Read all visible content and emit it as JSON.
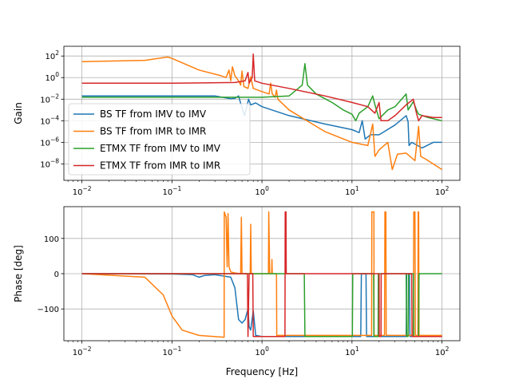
{
  "figure": {
    "xlabel": "Frequency [Hz]"
  },
  "chart_data": [
    {
      "type": "line",
      "panel": "gain",
      "ylabel": "Gain",
      "xscale": "log",
      "yscale": "log",
      "xlim": [
        0.0063,
        158
      ],
      "ylim": [
        3e-10,
        800
      ],
      "grid": true,
      "legend": "lower-left",
      "x_ticks": [
        {
          "value": 0.01,
          "base": "10",
          "exp": "−2"
        },
        {
          "value": 0.1,
          "base": "10",
          "exp": "−1"
        },
        {
          "value": 1,
          "base": "10",
          "exp": "0"
        },
        {
          "value": 10,
          "base": "10",
          "exp": "1"
        },
        {
          "value": 100,
          "base": "10",
          "exp": "2"
        }
      ],
      "y_ticks": [
        {
          "value": 100,
          "base": "10",
          "exp": "2"
        },
        {
          "value": 1,
          "base": "10",
          "exp": "0"
        },
        {
          "value": 0.01,
          "base": "10",
          "exp": "−2"
        },
        {
          "value": 0.0001,
          "base": "10",
          "exp": "−4"
        },
        {
          "value": 1e-06,
          "base": "10",
          "exp": "−6"
        },
        {
          "value": 1e-08,
          "base": "10",
          "exp": "−8"
        }
      ],
      "series": [
        {
          "name": "BS TF from IMV to IMV",
          "color": "#1f77b4",
          "points": [
            [
              0.01,
              0.02
            ],
            [
              0.1,
              0.02
            ],
            [
              0.3,
              0.02
            ],
            [
              0.45,
              0.011
            ],
            [
              0.5,
              0.012
            ],
            [
              0.55,
              0.02
            ],
            [
              0.6,
              0.0015
            ],
            [
              0.64,
              0.0003
            ],
            [
              0.68,
              0.002
            ],
            [
              0.71,
              0.01
            ],
            [
              0.75,
              0.003
            ],
            [
              0.85,
              0.0045
            ],
            [
              1.0,
              0.002
            ],
            [
              2.0,
              0.0003
            ],
            [
              5.0,
              5e-05
            ],
            [
              10,
              1.5e-05
            ],
            [
              12,
              8e-06
            ],
            [
              13,
              0.0001
            ],
            [
              14,
              2e-06
            ],
            [
              16,
              5e-06
            ],
            [
              20,
              5e-06
            ],
            [
              30,
              4e-05
            ],
            [
              40,
              0.0003
            ],
            [
              42,
              8e-05
            ],
            [
              43,
              5e-07
            ],
            [
              46,
              1e-06
            ],
            [
              60,
              3e-07
            ],
            [
              80,
              1e-06
            ],
            [
              100,
              1e-06
            ]
          ]
        },
        {
          "name": "BS TF from IMR to IMR",
          "color": "#ff7f0e",
          "points": [
            [
              0.01,
              30
            ],
            [
              0.05,
              40
            ],
            [
              0.08,
              70
            ],
            [
              0.09,
              80
            ],
            [
              0.1,
              60
            ],
            [
              0.2,
              5
            ],
            [
              0.35,
              1.5
            ],
            [
              0.4,
              1
            ],
            [
              0.43,
              5
            ],
            [
              0.45,
              0.5
            ],
            [
              0.47,
              10
            ],
            [
              0.5,
              1.5
            ],
            [
              0.55,
              0.5
            ],
            [
              0.58,
              0.2
            ],
            [
              0.6,
              4
            ],
            [
              0.63,
              0.15
            ],
            [
              0.7,
              0.1
            ],
            [
              0.75,
              1.2
            ],
            [
              0.8,
              0.1
            ],
            [
              1.0,
              0.05
            ],
            [
              1.2,
              0.03
            ],
            [
              1.25,
              0.3
            ],
            [
              1.3,
              0.03
            ],
            [
              1.4,
              0.015
            ],
            [
              1.45,
              0.07
            ],
            [
              1.5,
              0.01
            ],
            [
              2.0,
              0.001
            ],
            [
              5.0,
              1e-05
            ],
            [
              10,
              1e-06
            ],
            [
              15,
              5e-07
            ],
            [
              17,
              5e-05
            ],
            [
              18,
              5e-08
            ],
            [
              20,
              2e-07
            ],
            [
              25,
              1e-06
            ],
            [
              28,
              3e-09
            ],
            [
              32,
              8e-08
            ],
            [
              40,
              1e-07
            ],
            [
              50,
              2e-08
            ],
            [
              55,
              3e-05
            ],
            [
              58,
              5e-08
            ],
            [
              65,
              3e-08
            ],
            [
              100,
              3e-09
            ]
          ]
        },
        {
          "name": "ETMX TF from IMV to IMV",
          "color": "#2ca02c",
          "points": [
            [
              0.01,
              0.015
            ],
            [
              0.1,
              0.015
            ],
            [
              0.5,
              0.015
            ],
            [
              1.0,
              0.015
            ],
            [
              2.0,
              0.02
            ],
            [
              2.8,
              0.2
            ],
            [
              3.0,
              20
            ],
            [
              3.2,
              0.2
            ],
            [
              4.0,
              0.03
            ],
            [
              6.0,
              0.005
            ],
            [
              8.0,
              0.001
            ],
            [
              10,
              0.0004
            ],
            [
              11,
              0.0001
            ],
            [
              12,
              0.0005
            ],
            [
              15,
              0.002
            ],
            [
              17,
              0.02
            ],
            [
              18,
              0.003
            ],
            [
              20,
              0.00015
            ],
            [
              25,
              0.001
            ],
            [
              30,
              0.002
            ],
            [
              40,
              0.03
            ],
            [
              42,
              0.001
            ],
            [
              48,
              0.006
            ],
            [
              52,
              0.001
            ],
            [
              55,
              0.0004
            ],
            [
              70,
              0.0002
            ],
            [
              100,
              0.0001
            ]
          ]
        },
        {
          "name": "ETMX TF from IMR to IMR",
          "color": "#d62728",
          "points": [
            [
              0.01,
              0.3
            ],
            [
              0.1,
              0.3
            ],
            [
              0.5,
              0.35
            ],
            [
              0.65,
              0.5
            ],
            [
              0.7,
              3
            ],
            [
              0.72,
              0.3
            ],
            [
              0.78,
              1
            ],
            [
              0.8,
              150
            ],
            [
              0.83,
              0.5
            ],
            [
              1.0,
              0.3
            ],
            [
              2.0,
              0.1
            ],
            [
              5.0,
              0.02
            ],
            [
              10,
              0.005
            ],
            [
              15,
              0.002
            ],
            [
              18,
              0.0005
            ],
            [
              20,
              0.005
            ],
            [
              21,
              0.0001
            ],
            [
              25,
              0.0001
            ],
            [
              30,
              0.0003
            ],
            [
              40,
              0.003
            ],
            [
              48,
              0.01
            ],
            [
              52,
              0.0005
            ],
            [
              55,
              0.0001
            ],
            [
              60,
              0.0003
            ],
            [
              80,
              0.0002
            ],
            [
              100,
              0.0002
            ]
          ]
        }
      ]
    },
    {
      "type": "line",
      "panel": "phase",
      "ylabel": "Phase [deg]",
      "xscale": "log",
      "xlim": [
        0.0063,
        158
      ],
      "ylim": [
        -190,
        190
      ],
      "grid": true,
      "x_ticks": [
        {
          "value": 0.01,
          "base": "10",
          "exp": "−2"
        },
        {
          "value": 0.1,
          "base": "10",
          "exp": "−1"
        },
        {
          "value": 1,
          "base": "10",
          "exp": "0"
        },
        {
          "value": 10,
          "base": "10",
          "exp": "1"
        },
        {
          "value": 100,
          "base": "10",
          "exp": "2"
        }
      ],
      "y_ticks": [
        {
          "value": 100,
          "label": "100"
        },
        {
          "value": 0,
          "label": "0"
        },
        {
          "value": -100,
          "label": "−100"
        }
      ],
      "series": [
        {
          "name": "BS TF from IMV to IMV",
          "color": "#1f77b4",
          "points": [
            [
              0.01,
              0
            ],
            [
              0.1,
              -1
            ],
            [
              0.17,
              -3
            ],
            [
              0.2,
              -10
            ],
            [
              0.23,
              -5
            ],
            [
              0.3,
              -3
            ],
            [
              0.45,
              -10
            ],
            [
              0.5,
              -40
            ],
            [
              0.55,
              -130
            ],
            [
              0.6,
              -140
            ],
            [
              0.65,
              -130
            ],
            [
              0.7,
              -100
            ],
            [
              0.72,
              -150
            ],
            [
              0.75,
              -160
            ],
            [
              0.8,
              -105
            ],
            [
              0.85,
              -175
            ],
            [
              1.0,
              -178
            ],
            [
              12.5,
              -178
            ],
            [
              12.7,
              0
            ],
            [
              14.3,
              0
            ],
            [
              14.5,
              -178
            ],
            [
              40,
              -178
            ],
            [
              40.5,
              0
            ],
            [
              43.5,
              0
            ],
            [
              44,
              -178
            ],
            [
              100,
              -178
            ]
          ]
        },
        {
          "name": "BS TF from IMR to IMR",
          "color": "#ff7f0e",
          "points": [
            [
              0.01,
              0
            ],
            [
              0.05,
              -10
            ],
            [
              0.08,
              -60
            ],
            [
              0.1,
              -120
            ],
            [
              0.13,
              -160
            ],
            [
              0.2,
              -175
            ],
            [
              0.38,
              -180
            ],
            [
              0.381,
              175
            ],
            [
              0.4,
              160
            ],
            [
              0.41,
              20
            ],
            [
              0.42,
              170
            ],
            [
              0.43,
              20
            ],
            [
              0.45,
              5
            ],
            [
              0.5,
              2
            ],
            [
              0.58,
              0
            ],
            [
              0.59,
              160
            ],
            [
              0.6,
              0
            ],
            [
              0.7,
              0
            ],
            [
              0.74,
              0
            ],
            [
              0.75,
              140
            ],
            [
              0.76,
              0
            ],
            [
              1.0,
              0
            ],
            [
              1.18,
              0
            ],
            [
              1.19,
              175
            ],
            [
              1.22,
              0
            ],
            [
              1.28,
              0
            ],
            [
              1.29,
              40
            ],
            [
              1.3,
              0
            ],
            [
              1.45,
              0
            ],
            [
              1.46,
              -175
            ],
            [
              16.5,
              -175
            ],
            [
              16.6,
              175
            ],
            [
              17.5,
              175
            ],
            [
              17.6,
              -175
            ],
            [
              23,
              -175
            ],
            [
              23.2,
              175
            ],
            [
              23.8,
              175
            ],
            [
              24,
              -175
            ],
            [
              48,
              -175
            ],
            [
              48.5,
              175
            ],
            [
              50,
              175
            ],
            [
              50.5,
              -175
            ],
            [
              54,
              -175
            ],
            [
              54.3,
              175
            ],
            [
              55,
              175
            ],
            [
              55.5,
              -175
            ],
            [
              100,
              -175
            ]
          ]
        },
        {
          "name": "ETMX TF from IMV to IMV",
          "color": "#2ca02c",
          "points": [
            [
              0.01,
              0
            ],
            [
              2.95,
              0
            ],
            [
              3.0,
              -178
            ],
            [
              10.1,
              -178
            ],
            [
              10.2,
              0
            ],
            [
              17.4,
              0
            ],
            [
              17.5,
              -178
            ],
            [
              19.5,
              -178
            ],
            [
              19.6,
              0
            ],
            [
              40,
              0
            ],
            [
              40.5,
              -178
            ],
            [
              42,
              -178
            ],
            [
              42.5,
              0
            ],
            [
              48,
              0
            ],
            [
              48.5,
              -178
            ],
            [
              55,
              -178
            ],
            [
              55.5,
              0
            ],
            [
              100,
              0
            ]
          ]
        },
        {
          "name": "ETMX TF from IMR to IMR",
          "color": "#d62728",
          "points": [
            [
              0.01,
              0
            ],
            [
              0.69,
              0
            ],
            [
              0.7,
              -178
            ],
            [
              0.72,
              0
            ],
            [
              0.79,
              0
            ],
            [
              0.8,
              -178
            ],
            [
              1.8,
              -178
            ],
            [
              1.81,
              175
            ],
            [
              1.85,
              175
            ],
            [
              1.86,
              0
            ],
            [
              1.9,
              0
            ],
            [
              20,
              0
            ],
            [
              20.1,
              -178
            ],
            [
              21,
              -178
            ],
            [
              21.1,
              0
            ],
            [
              46,
              0
            ],
            [
              46.5,
              -178
            ],
            [
              100,
              -178
            ]
          ]
        }
      ]
    }
  ]
}
